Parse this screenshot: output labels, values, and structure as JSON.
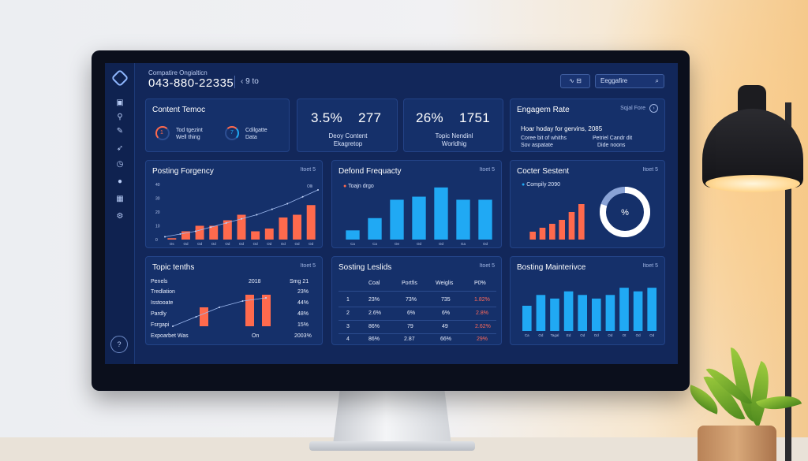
{
  "dashboard": {
    "subtitle": "Compatire Ongialticn",
    "title": "043-880-22335",
    "back_link": "‹ 9 to",
    "filter_label": "∿ ⊟",
    "search_placeholder": "Eeggafire",
    "search_icon": "search-icon"
  },
  "sidebar": {
    "icons": [
      "home-icon",
      "briefcase-icon",
      "link-icon",
      "edit-icon",
      "rocket-icon",
      "clock-icon",
      "user-icon",
      "grid-icon",
      "settings-icon"
    ],
    "help_label": "?"
  },
  "content_card": {
    "title": "Content Temoc",
    "items": [
      {
        "value": "1",
        "line1": "Tod tgezint",
        "line2": "Well thing"
      },
      {
        "value": "7",
        "line1": "Cdilgatte",
        "line2": "Data"
      }
    ]
  },
  "stat_cards": [
    {
      "value_a": "3.5%",
      "value_b": "277",
      "line1": "Deoy Content",
      "line2": "Ekagretop"
    },
    {
      "value_a": "26%",
      "value_b": "1751",
      "line1": "Topic Nendinl",
      "line2": "Worldhig"
    }
  ],
  "engagement": {
    "title": "Engagem Rate",
    "menu": "Sqjal Fore",
    "headline": "Hoar hoday for gervins, 2085",
    "col1": [
      "Coree bit of whiths",
      "Sov aspatate"
    ],
    "col2": [
      "Petriel Candr dit",
      "Dide noons"
    ]
  },
  "posting_frequency": {
    "title": "Posting Forgency",
    "menu": "Itoet 5",
    "y_ticks": [
      "40",
      "30",
      "20",
      "10",
      "0"
    ],
    "x_ticks": [
      "Os",
      "Od",
      "Od",
      "Od",
      "Od",
      "Od",
      "Od",
      "Od",
      "Od",
      "Od",
      "Od"
    ],
    "trend_label": "Olli"
  },
  "defend_frequency": {
    "title": "Defond Frequacty",
    "menu": "Itoet 5",
    "legend": "Toajn drgo",
    "x_ticks": [
      "Ca",
      "Ca",
      "Oe",
      "Od",
      "Od",
      "Ga",
      "Od"
    ]
  },
  "cocter": {
    "title": "Cocter Sestent",
    "menu": "Itoet 5",
    "legend": "Compily 2090",
    "donut_label": "%"
  },
  "topic": {
    "title": "Topic tenths",
    "menu": "Itoet 5",
    "header": [
      "Penels",
      "2018",
      "Smg 21"
    ],
    "rows": [
      {
        "name": "Tredlation",
        "value": "23%"
      },
      {
        "name": "Isstooate",
        "value": "44%"
      },
      {
        "name": "Pardly",
        "value": "48%"
      },
      {
        "name": "Fsrgapi",
        "value": "15%"
      }
    ],
    "footer": [
      "Expoarbet Was",
      "On",
      "2003%"
    ]
  },
  "sosting": {
    "title": "Sosting Leslids",
    "menu": "Itoet 5",
    "header": [
      "",
      "Coal",
      "Portfis",
      "Weiglis",
      "P0%"
    ],
    "rows": [
      [
        "1",
        "23%",
        "73%",
        "735",
        "1.82%"
      ],
      [
        "2",
        "2.6%",
        "6%",
        "6%",
        "2.8%"
      ],
      [
        "3",
        "86%",
        "79",
        "49",
        "2.62%"
      ],
      [
        "4",
        "86%",
        "2.87",
        "66%",
        "29%"
      ]
    ]
  },
  "bosting": {
    "title": "Bosting Mainterivce",
    "menu": "Itoet 5",
    "x_ticks": [
      "Ca",
      "Od",
      "Tagal",
      "Ed",
      "Od",
      "Od",
      "Od",
      "Ot",
      "Od",
      "Od"
    ]
  },
  "chart_data": [
    {
      "type": "bar",
      "title": "Posting Forgency",
      "categories": [
        "Os",
        "Od",
        "Od",
        "Od",
        "Od",
        "Od",
        "Od",
        "Od",
        "Od",
        "Od",
        "Od"
      ],
      "values": [
        1,
        6,
        10,
        10,
        14,
        18,
        6,
        8,
        16,
        18,
        25
      ],
      "ylim": [
        0,
        40
      ],
      "trend": [
        2,
        4,
        6,
        9,
        12,
        15,
        18,
        22,
        26,
        31,
        36
      ],
      "color": "#ff6a4d",
      "grid": false
    },
    {
      "type": "bar",
      "title": "Defond Frequacty",
      "categories": [
        "Ca",
        "Ca",
        "Oe",
        "Od",
        "Od",
        "Ga",
        "Od"
      ],
      "values": [
        3,
        7,
        13,
        14,
        17,
        13,
        13
      ],
      "ylim": [
        0,
        18
      ],
      "color": "#20a9f4"
    },
    {
      "type": "bar",
      "title": "Cocter Sestent",
      "categories": [
        "",
        "",
        "",
        "",
        "",
        ""
      ],
      "values": [
        2,
        3,
        4,
        5,
        7,
        9
      ],
      "ylim": [
        0,
        12
      ],
      "color": "#ff6a4d",
      "donut": {
        "filled": 0.8,
        "color": "#ffffff",
        "track": "#8aa3d6"
      }
    },
    {
      "type": "bar",
      "title": "Topic tenths",
      "categories": [
        "",
        ""
      ],
      "values": [
        6,
        10
      ],
      "ylim": [
        0,
        12
      ],
      "trend": [
        1,
        4,
        7,
        9,
        10
      ],
      "color": "#ff6a4d"
    },
    {
      "type": "bar",
      "title": "Bosting Mainterivce",
      "categories": [
        "Ca",
        "Od",
        "Tagal",
        "Ed",
        "Od",
        "Od",
        "Od",
        "Ot",
        "Od",
        "Od"
      ],
      "values": [
        7,
        10,
        9,
        11,
        10,
        9,
        10,
        12,
        11,
        12
      ],
      "ylim": [
        0,
        14
      ],
      "color": "#20a9f4"
    }
  ]
}
